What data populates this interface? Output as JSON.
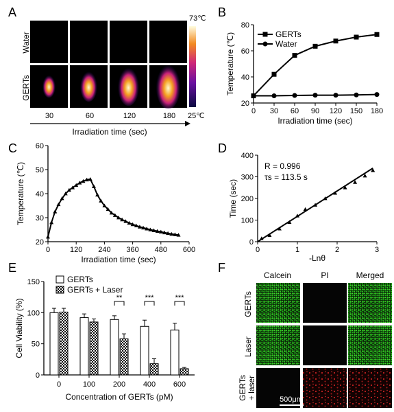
{
  "panel_labels": [
    "A",
    "B",
    "C",
    "D",
    "E",
    "F"
  ],
  "panel_a": {
    "row_labels": [
      "Water",
      "GERTs"
    ],
    "time_labels": [
      "30",
      "60",
      "120",
      "180"
    ],
    "colorbar_max": "73℃",
    "colorbar_min": "25℃",
    "xlabel": "Irradiation time (sec)",
    "heat_intensity": [
      0.3,
      0.55,
      0.8,
      1.0
    ],
    "colors": {
      "cold": "#1a0a5e",
      "mid": "#c0208a",
      "warm": "#f07a20",
      "hot": "#fff8c0"
    }
  },
  "panel_f": {
    "col_labels": [
      "Calcein",
      "PI",
      "Merged"
    ],
    "row_labels": [
      "GERTs",
      "Laser",
      "GERTs\n+ laser"
    ],
    "scale_bar": "500μm",
    "colors": {
      "green": "#22c41a",
      "red": "#c42020"
    }
  },
  "chart_data": [
    {
      "id": "B",
      "type": "line",
      "xlabel": "Irradiation time (sec)",
      "ylabel": "Temperature (℃)",
      "xlim": [
        0,
        180
      ],
      "ylim": [
        20,
        80
      ],
      "xticks": [
        0,
        30,
        60,
        90,
        120,
        150,
        180
      ],
      "yticks": [
        20,
        40,
        60,
        80
      ],
      "legend_position": "top-right",
      "series": [
        {
          "name": "GERTs",
          "marker": "square",
          "x": [
            0,
            30,
            60,
            90,
            120,
            150,
            180
          ],
          "y": [
            25.5,
            42,
            56.5,
            63.5,
            67.5,
            70.5,
            72.5
          ]
        },
        {
          "name": "Water",
          "marker": "circle",
          "x": [
            0,
            30,
            60,
            90,
            120,
            150,
            180
          ],
          "y": [
            25.5,
            25.5,
            25.8,
            26,
            26,
            26.2,
            26.5
          ]
        }
      ]
    },
    {
      "id": "C",
      "type": "line",
      "xlabel": "Irradiation time (sec)",
      "ylabel": "Temperature (℃)",
      "xlim": [
        0,
        600
      ],
      "ylim": [
        20,
        60
      ],
      "xticks": [
        0,
        120,
        240,
        360,
        480,
        600
      ],
      "yticks": [
        20,
        30,
        40,
        50,
        60
      ],
      "series": [
        {
          "marker": "triangle",
          "x": [
            0,
            15,
            30,
            45,
            60,
            75,
            90,
            105,
            120,
            135,
            150,
            165,
            180,
            195,
            210,
            225,
            240,
            255,
            270,
            285,
            300,
            315,
            330,
            345,
            360,
            375,
            390,
            405,
            420,
            435,
            450,
            465,
            480,
            495,
            510,
            525,
            540,
            555
          ],
          "y": [
            22,
            28,
            32.5,
            35.5,
            38,
            40,
            41.5,
            42.5,
            43.5,
            44.5,
            45.2,
            45.8,
            46,
            43,
            39.5,
            37,
            35,
            33.5,
            32,
            31,
            30,
            29.2,
            28.5,
            27.8,
            27.2,
            26.7,
            26.2,
            25.8,
            25.4,
            25,
            24.7,
            24.4,
            24.1,
            23.8,
            23.5,
            23.2,
            23,
            22.8
          ]
        }
      ]
    },
    {
      "id": "D",
      "type": "scatter",
      "xlabel": "-Lnθ",
      "ylabel": "Time (sec)",
      "xlim": [
        0,
        3
      ],
      "ylim": [
        0,
        400
      ],
      "xticks": [
        0,
        1,
        2,
        3
      ],
      "yticks": [
        0,
        100,
        200,
        300,
        400
      ],
      "annotations": [
        "R = 0.996",
        "τs = 113.5 s"
      ],
      "points": {
        "x": [
          0.1,
          0.3,
          0.55,
          0.8,
          1.0,
          1.2,
          1.45,
          1.7,
          1.95,
          2.2,
          2.45,
          2.7,
          2.9
        ],
        "y": [
          15,
          30,
          60,
          90,
          120,
          150,
          170,
          200,
          225,
          250,
          275,
          305,
          330
        ]
      },
      "fit": {
        "x": [
          0,
          2.9
        ],
        "y": [
          0,
          340
        ]
      }
    },
    {
      "id": "E",
      "type": "bar",
      "xlabel": "Concentration of GERTs (pM)",
      "ylabel": "Cell Viability (%)",
      "ylim": [
        0,
        150
      ],
      "yticks": [
        0,
        50,
        100,
        150
      ],
      "categories": [
        "0",
        "100",
        "200",
        "400",
        "600"
      ],
      "legend_position": "top-left",
      "series": [
        {
          "name": "GERTs",
          "pattern": "white",
          "values": [
            100,
            92,
            89,
            78,
            72
          ],
          "errors": [
            7,
            6,
            6,
            10,
            11
          ]
        },
        {
          "name": "GERTs + Laser",
          "pattern": "checker",
          "values": [
            101,
            85,
            58,
            18,
            10
          ],
          "errors": [
            6,
            5,
            8,
            8,
            2
          ]
        }
      ],
      "significance": [
        {
          "category": "200",
          "label": "**"
        },
        {
          "category": "400",
          "label": "***"
        },
        {
          "category": "600",
          "label": "***"
        }
      ]
    }
  ]
}
